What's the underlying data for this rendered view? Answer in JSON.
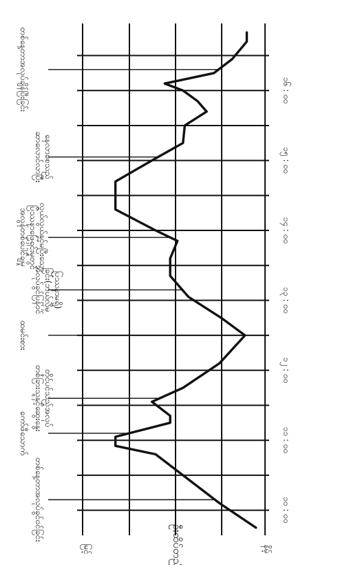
{
  "chart_data": {
    "type": "line",
    "title": "",
    "xlabel": "",
    "ylabel": "ဦးထိပ်တည်မှု",
    "orientation": "rotated-90-clockwise",
    "x_ticks": [
      "၁၀ : ၀၀",
      "၁၁ : ၀၀",
      "၁၂ : ၀၀",
      "၁၃ : ၀၀",
      "၁၄ : ၀၀",
      "၁၅ : ၀၀",
      "၁၆ : ၀၀"
    ],
    "x_range": [
      9.7,
      16.9
    ],
    "y_range": [
      0,
      100
    ],
    "y_end_labels": {
      "low": "မြင့်",
      "high": "နိမ့်"
    },
    "series": [
      {
        "x": [
          9.75,
          10.1,
          10.5,
          10.8,
          10.92,
          11.05,
          11.25,
          11.35,
          11.55,
          11.75,
          12.1,
          12.5,
          12.75,
          13.05,
          13.35,
          13.6,
          13.85,
          14.0,
          14.3,
          14.7,
          15.0,
          15.25,
          15.5,
          15.7,
          15.85,
          16.0,
          16.1,
          16.25,
          16.45,
          16.7,
          16.83
        ],
        "y": [
          95,
          75,
          55,
          40,
          18,
          18,
          48,
          48,
          38,
          55,
          75,
          89,
          76,
          58,
          48,
          48,
          52,
          40,
          18,
          18,
          38,
          55,
          56,
          68,
          63,
          55,
          45,
          72,
          82,
          90,
          90
        ]
      }
    ],
    "annotations": [
      {
        "text": "တစ်နေ့တာအလုပ်ခွင်ဝင်ခြင်း",
        "x": 10.15
      },
      {
        "text": "ကော်ဖီသောက်",
        "x": 11.1
      },
      {
        "text": "တစ်ခြားသူနှင့်ဆွေးနွေး တိုင်ပင်သည့်အလုပ်",
        "x": 11.6
      },
      {
        "text": "ထမင်းစား",
        "x": 12.5
      },
      {
        "text": "အလုပ်ခွင်ပြန်ဝင် ခြင်း(ဘယ်လိုမှ ပြဿနာမရှိ)",
        "x": 13.15
      },
      {
        "text": "အလွန်တစ်ပေါင်ချမှု ပြဿနာဖြေရှင်းမှုတွင် လွယ်လွယ်နှင့်မပြီးသော",
        "x": 13.9
      },
      {
        "text": "ဆာလောင်လာပြီး နေလာစေသည်",
        "x": 15.05
      },
      {
        "text": "တစ်နေ့တာအလုပ်ချိန်ပြီးခြင်း",
        "x": 16.3
      }
    ]
  }
}
